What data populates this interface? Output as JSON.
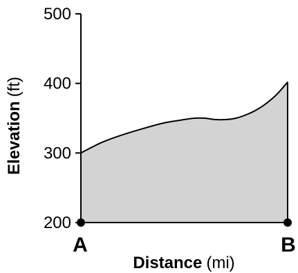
{
  "chart_data": {
    "type": "area",
    "xlabel": {
      "main": "Distance",
      "unit": "(mi)"
    },
    "ylabel": {
      "main": "Elevation",
      "unit": "(ft)"
    },
    "ylim": [
      200,
      500
    ],
    "yticks": [
      200,
      300,
      400,
      500
    ],
    "ytick_labels": [
      "200",
      "300",
      "400",
      "500"
    ],
    "endpoints": {
      "start": "A",
      "end": "B"
    },
    "x": [
      0,
      0.1,
      0.2,
      0.3,
      0.4,
      0.5,
      0.55,
      0.6,
      0.65,
      0.7,
      0.75,
      0.8,
      0.85,
      0.9,
      0.95,
      1.0
    ],
    "y": [
      300,
      315,
      326,
      335,
      343,
      348,
      350,
      350,
      348,
      348,
      350,
      355,
      362,
      372,
      385,
      402
    ],
    "fill_color": "#d3d3d3",
    "line_color": "#000000",
    "grid": false,
    "legend": "none"
  }
}
